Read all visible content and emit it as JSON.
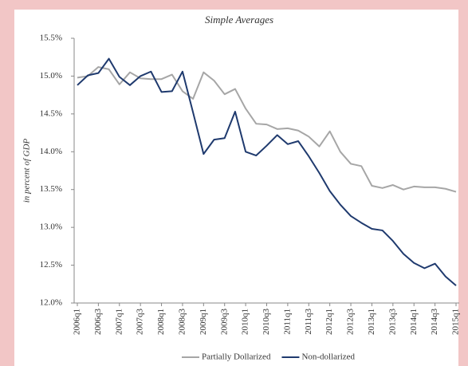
{
  "chart_data": {
    "type": "line",
    "title": "Simple Averages",
    "y_label": "in percent of GDP",
    "categories": [
      "2006q1",
      null,
      "2006q3",
      null,
      "2007q1",
      null,
      "2007q3",
      null,
      "2008q1",
      null,
      "2008q3",
      null,
      "2009q1",
      null,
      "2009q3",
      null,
      "2010q1",
      null,
      "2010q3",
      null,
      "2011q1",
      null,
      "2011q3",
      null,
      "2012q1",
      null,
      "2012q3",
      null,
      "2013q1",
      null,
      "2013q3",
      null,
      "2014q1",
      null,
      "2014q3",
      null,
      "2015q1"
    ],
    "series": [
      {
        "name": "Partially Dollarized",
        "color": "#a6a6a6",
        "values": [
          14.98,
          15.0,
          15.12,
          15.09,
          14.89,
          15.05,
          14.97,
          14.96,
          14.96,
          15.02,
          14.8,
          14.7,
          15.05,
          14.94,
          14.76,
          14.83,
          14.57,
          14.37,
          14.36,
          14.3,
          14.31,
          14.28,
          14.2,
          14.07,
          14.27,
          14.0,
          13.84,
          13.81,
          13.55,
          13.52,
          13.56,
          13.5,
          13.54,
          13.53,
          13.53,
          13.51,
          13.47
        ]
      },
      {
        "name": "Non-dollarized",
        "color": "#1f3a6e",
        "values": [
          14.88,
          15.01,
          15.04,
          15.23,
          14.99,
          14.88,
          15.0,
          15.06,
          14.79,
          14.8,
          15.06,
          14.52,
          13.97,
          14.16,
          14.18,
          14.53,
          14.0,
          13.95,
          14.08,
          14.22,
          14.1,
          14.14,
          13.94,
          13.72,
          13.48,
          13.3,
          13.15,
          13.06,
          12.98,
          12.96,
          12.82,
          12.65,
          12.53,
          12.46,
          12.52,
          12.35,
          12.23
        ]
      }
    ],
    "ylim": [
      12.0,
      15.5
    ],
    "yticks": [
      {
        "value": 12.0,
        "label": "12.0%"
      },
      {
        "value": 12.5,
        "label": "12.5%"
      },
      {
        "value": 13.0,
        "label": "13.0%"
      },
      {
        "value": 13.5,
        "label": "13.5%"
      },
      {
        "value": 14.0,
        "label": "14.0%"
      },
      {
        "value": 14.5,
        "label": "14.5%"
      },
      {
        "value": 15.0,
        "label": "15.0%"
      },
      {
        "value": 15.5,
        "label": "15.5%"
      }
    ],
    "grid": false,
    "legend": "bottom"
  }
}
